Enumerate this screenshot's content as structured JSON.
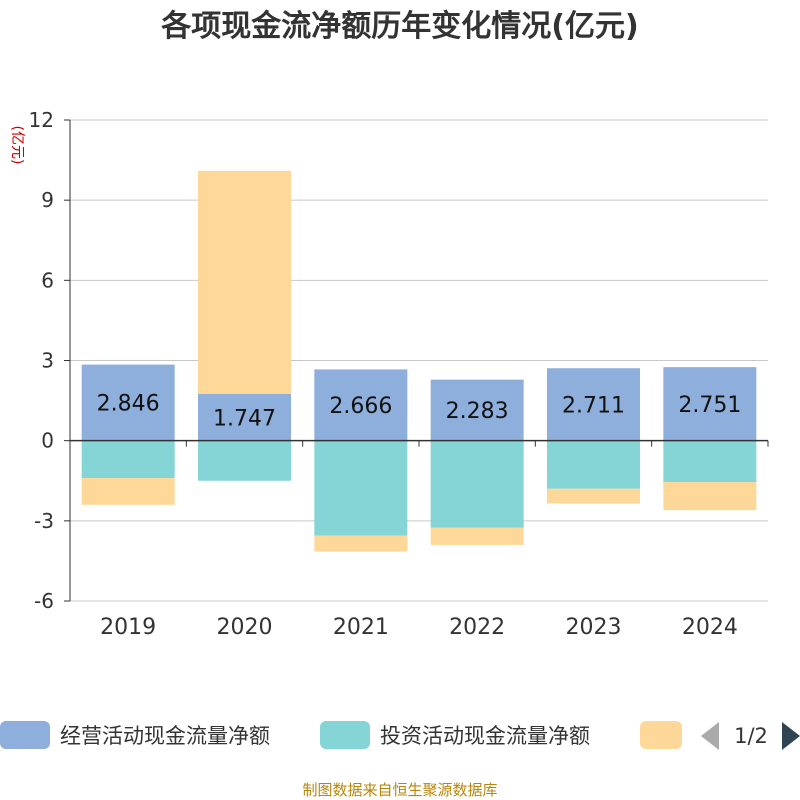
{
  "chart_data": {
    "type": "bar",
    "stacked": true,
    "title": "各项现金流净额历年变化情况(亿元)",
    "ylabel": "(亿元)",
    "xlabel": "",
    "categories": [
      "2019",
      "2020",
      "2021",
      "2022",
      "2023",
      "2024"
    ],
    "ylim": [
      -6,
      12
    ],
    "yticks": [
      12,
      9,
      6,
      3,
      0,
      -3,
      -6
    ],
    "grid": true,
    "series": [
      {
        "name": "经营活动现金流量净额",
        "color": "#8eaedb",
        "values": [
          2.846,
          1.747,
          2.666,
          2.283,
          2.711,
          2.751
        ],
        "labels": [
          "2.846",
          "1.747",
          "2.666",
          "2.283",
          "2.711",
          "2.751"
        ]
      },
      {
        "name": "投资活动现金流量净额",
        "color": "#85d4d6",
        "values": [
          -1.4,
          -1.5,
          -3.55,
          -3.25,
          -1.8,
          -1.55
        ]
      },
      {
        "name": "",
        "color": "#fdd899",
        "values": [
          -1.0,
          8.35,
          -0.6,
          -0.65,
          -0.55,
          -1.05
        ]
      }
    ],
    "legend": {
      "position": "bottom",
      "page": "1/2"
    },
    "source": "制图数据来自恒生聚源数据库"
  }
}
